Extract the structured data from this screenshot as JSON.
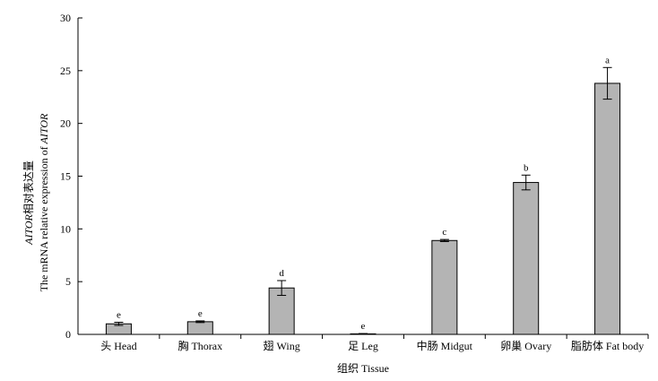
{
  "chart_data": {
    "type": "bar",
    "xlabel": "组织 Tissue",
    "ylabel_line1_italic": "AITOR",
    "ylabel_line1_rest": "相对表达量",
    "ylabel_line2_prefix": "The mRNA relative expression of ",
    "ylabel_line2_italic": "AITOR",
    "ylim": [
      0,
      30
    ],
    "yticks": [
      0,
      5,
      10,
      15,
      20,
      25,
      30
    ],
    "categories": [
      "头 Head",
      "胸 Thorax",
      "翅 Wing",
      "足 Leg",
      "中肠 Midgut",
      "卵巢 Ovary",
      "脂肪体 Fat body"
    ],
    "values": [
      1.0,
      1.2,
      4.4,
      0.05,
      8.9,
      14.4,
      23.8
    ],
    "errors": [
      0.15,
      0.08,
      0.7,
      0.03,
      0.1,
      0.7,
      1.5
    ],
    "significance": [
      "e",
      "e",
      "d",
      "e",
      "c",
      "b",
      "a"
    ],
    "bar_color": "#b4b4b4",
    "bar_edge_color": "#000000",
    "grid": false
  }
}
